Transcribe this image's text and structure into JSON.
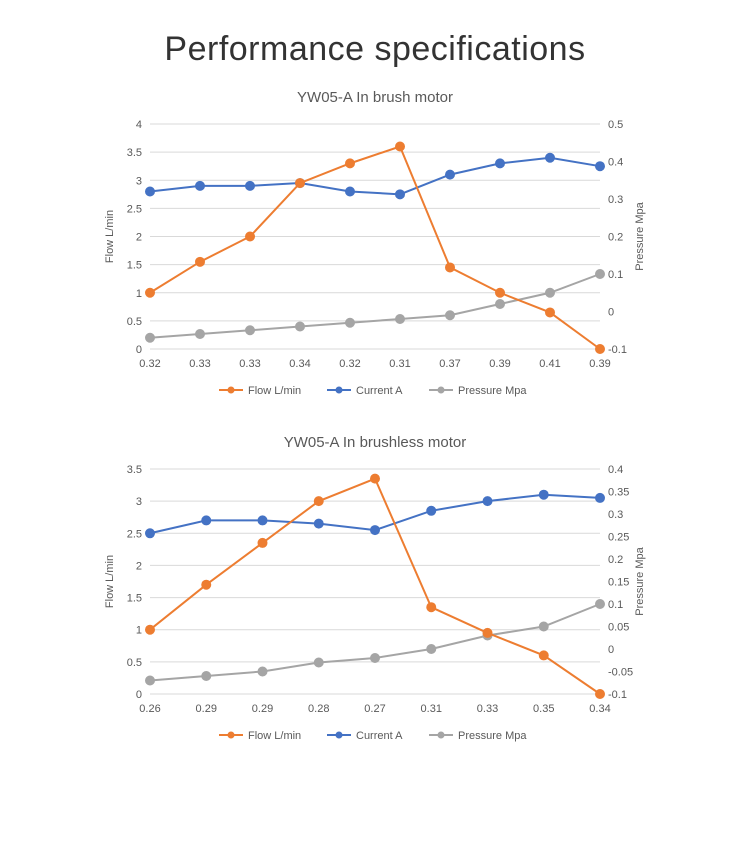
{
  "page_title": "Performance specifications",
  "colors": {
    "flow": "#ed7d31",
    "current": "#4472c4",
    "pressure": "#a5a5a5",
    "grid": "#d9d9d9",
    "text": "#595959",
    "background": "#ffffff"
  },
  "legend_labels": {
    "flow": "Flow L/min",
    "current": "Current A",
    "pressure": "Pressure Mpa"
  },
  "axis_labels": {
    "left": "Flow L/min",
    "right": "Pressure Mpa"
  },
  "marker_radius": 4,
  "line_width": 2,
  "font_size_title": 34,
  "font_size_chart_title": 15,
  "font_size_tick": 11,
  "chart1": {
    "title": "YW05-A In brush motor",
    "type": "line",
    "x_labels": [
      "0.32",
      "0.33",
      "0.33",
      "0.34",
      "0.32",
      "0.31",
      "0.37",
      "0.39",
      "0.41",
      "0.39"
    ],
    "left_axis": {
      "min": 0,
      "max": 4,
      "step": 0.5
    },
    "right_axis": {
      "min": -0.1,
      "max": 0.5,
      "step": 0.1
    },
    "series": {
      "flow": [
        1.0,
        1.55,
        2.0,
        2.95,
        3.3,
        3.6,
        1.45,
        1.0,
        0.65,
        0.0
      ],
      "current": [
        2.8,
        2.9,
        2.9,
        2.95,
        2.8,
        2.75,
        3.1,
        3.3,
        3.4,
        3.25
      ],
      "pressure": [
        -0.07,
        -0.06,
        -0.05,
        -0.04,
        -0.03,
        -0.02,
        -0.01,
        0.02,
        0.05,
        0.1
      ]
    }
  },
  "chart2": {
    "title": "YW05-A In brushless motor",
    "type": "line",
    "x_labels": [
      "0.26",
      "0.29",
      "0.29",
      "0.28",
      "0.27",
      "0.31",
      "0.33",
      "0.35",
      "0.34"
    ],
    "left_axis": {
      "min": 0,
      "max": 3.5,
      "step": 0.5
    },
    "right_axis": {
      "min": -0.1,
      "max": 0.4,
      "step": 0.05
    },
    "series": {
      "flow": [
        1.0,
        1.7,
        2.35,
        3.0,
        3.35,
        1.35,
        0.95,
        0.6,
        0.0
      ],
      "current": [
        2.5,
        2.7,
        2.7,
        2.65,
        2.55,
        2.85,
        3.0,
        3.1,
        3.05
      ],
      "pressure": [
        -0.07,
        -0.06,
        -0.05,
        -0.03,
        -0.02,
        0.0,
        0.03,
        0.05,
        0.1
      ]
    }
  }
}
